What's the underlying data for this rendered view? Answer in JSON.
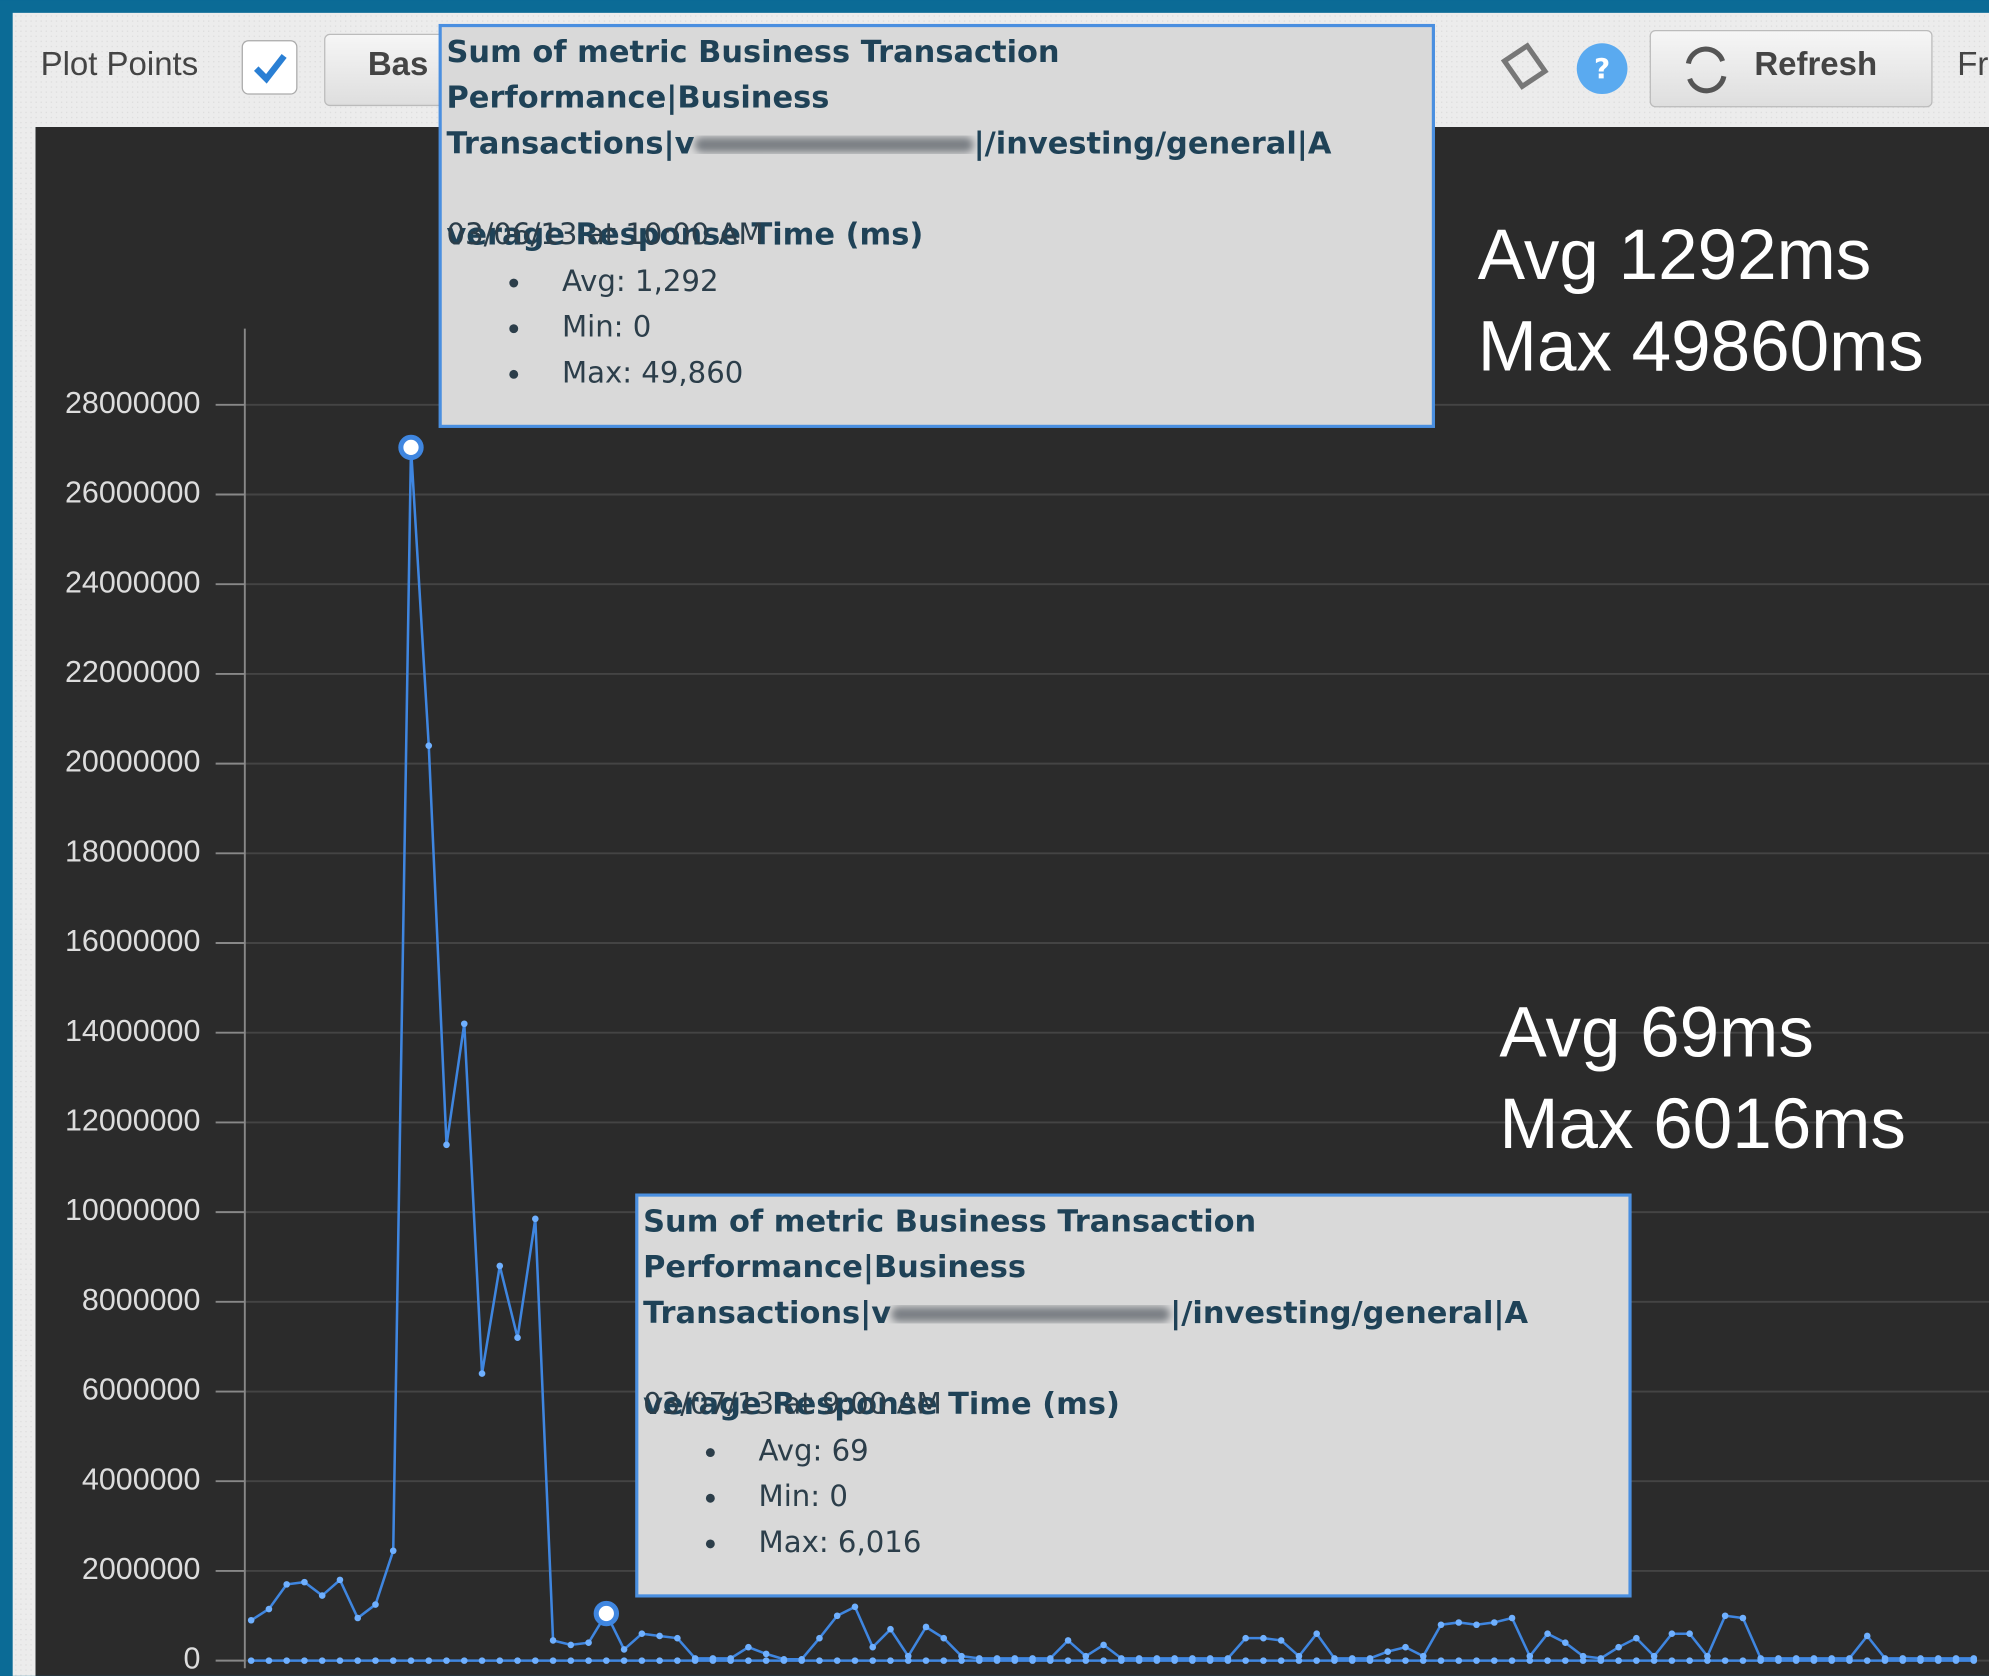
{
  "toolbar": {
    "plot_points": "Plot Points",
    "baseline_button": "Bas",
    "help": "?",
    "refresh": "Refresh",
    "from": "Fr"
  },
  "tooltips": [
    {
      "lines": [
        "Sum of metric Business Transaction",
        "Performance|Business",
        "Transactions|v",
        "|/investing/general|A",
        "verage Response Time (ms)"
      ],
      "date": "03/06/13 at 10:00 AM",
      "items": [
        "Avg: 1,292",
        "Min: 0",
        "Max: 49,860"
      ]
    },
    {
      "lines": [
        "Sum of metric Business Transaction",
        "Performance|Business",
        "Transactions|v",
        "|/investing/general|A",
        "verage Response Time (ms)"
      ],
      "date": "03/07/13 at 9:00 AM",
      "items": [
        "Avg: 69",
        "Min: 0",
        "Max: 6,016"
      ]
    }
  ],
  "annotations": [
    [
      "Avg 1292ms",
      "Max 49860ms"
    ],
    [
      "Avg 69ms",
      "Max 6016ms"
    ]
  ],
  "chart_data": {
    "type": "line",
    "categories": [
      null,
      null,
      null,
      null,
      null,
      null,
      null,
      null,
      null,
      null,
      null,
      null,
      null,
      null,
      null,
      null,
      null,
      null,
      null,
      null,
      null,
      null,
      null,
      null,
      null,
      null,
      null,
      null,
      null,
      null,
      null,
      null,
      null,
      null,
      null,
      null,
      null,
      null,
      null,
      null,
      null,
      null,
      null,
      null,
      null,
      null,
      null,
      null,
      null,
      null,
      null,
      null,
      null,
      null,
      null,
      null,
      null,
      null,
      null,
      null,
      null,
      null,
      null,
      null,
      null,
      null,
      null,
      null,
      null,
      null,
      null,
      null,
      null,
      null,
      null,
      null,
      null,
      null,
      null,
      null,
      null,
      null,
      null,
      null,
      null,
      null,
      null,
      null,
      null,
      null,
      null,
      null,
      null,
      null,
      null,
      null,
      null,
      null
    ],
    "series": [
      {
        "color": "#3f86e0",
        "values": [
          900000,
          1150000,
          1700000,
          1750000,
          1450000,
          1800000,
          950000,
          1250000,
          2450000,
          27050000,
          20400000,
          11500000,
          14200000,
          6400000,
          8800000,
          7200000,
          9850000,
          450000,
          350000,
          400000,
          1050000,
          250000,
          600000,
          550000,
          500000,
          50000,
          50000,
          50000,
          300000,
          150000,
          30000,
          30000,
          500000,
          1000000,
          1200000,
          300000,
          700000,
          100000,
          750000,
          500000,
          100000,
          50000,
          50000,
          50000,
          50000,
          50000,
          450000,
          100000,
          350000,
          50000,
          50000,
          50000,
          50000,
          50000,
          50000,
          50000,
          500000,
          500000,
          450000,
          100000,
          600000,
          50000,
          50000,
          50000,
          200000,
          300000,
          100000,
          800000,
          850000,
          800000,
          850000,
          950000,
          100000,
          600000,
          400000,
          100000,
          50000,
          300000,
          500000,
          100000,
          600000,
          600000,
          100000,
          1000000,
          950000,
          50000,
          50000,
          50000,
          50000,
          50000,
          50000,
          550000,
          50000,
          50000,
          50000,
          50000,
          50000,
          50000
        ]
      },
      {
        "color": "#3f86e0",
        "values": [
          0,
          0,
          0,
          0,
          0,
          0,
          0,
          0,
          0,
          0,
          0,
          0,
          0,
          0,
          0,
          0,
          0,
          0,
          0,
          0,
          0,
          0,
          0,
          0,
          0,
          0,
          0,
          0,
          0,
          0,
          0,
          0,
          0,
          0,
          0,
          0,
          0,
          0,
          0,
          0,
          0,
          0,
          0,
          0,
          0,
          0,
          0,
          0,
          0,
          0,
          0,
          0,
          0,
          0,
          0,
          0,
          0,
          0,
          0,
          0,
          0,
          0,
          0,
          0,
          0,
          0,
          0,
          0,
          0,
          0,
          0,
          0,
          0,
          0,
          0,
          0,
          0,
          0,
          0,
          0,
          0,
          0,
          0,
          0,
          0,
          0,
          0,
          0,
          0,
          0,
          0,
          0,
          0,
          0,
          0,
          0,
          0,
          0
        ]
      }
    ],
    "ylim": [
      0,
      29700000
    ],
    "yticks": [
      0,
      2000000,
      4000000,
      6000000,
      8000000,
      10000000,
      12000000,
      14000000,
      16000000,
      18000000,
      20000000,
      22000000,
      24000000,
      26000000,
      28000000
    ],
    "grid": true
  }
}
